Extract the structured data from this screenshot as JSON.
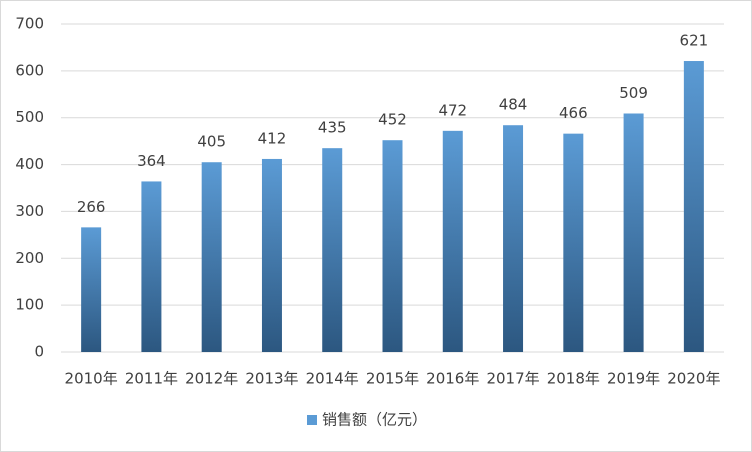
{
  "chart_data": {
    "type": "bar",
    "categories": [
      "2010年",
      "2011年",
      "2012年",
      "2013年",
      "2014年",
      "2015年",
      "2016年",
      "2017年",
      "2018年",
      "2019年",
      "2020年"
    ],
    "series": [
      {
        "name": "销售额（亿元）",
        "color": "#5b9bd5",
        "values": [
          266,
          364,
          405,
          412,
          435,
          452,
          472,
          484,
          466,
          509,
          621
        ]
      }
    ],
    "ylim": [
      0,
      700
    ],
    "yticks": [
      0,
      100,
      200,
      300,
      400,
      500,
      600,
      700
    ],
    "grid": true,
    "legend": "bottom"
  }
}
